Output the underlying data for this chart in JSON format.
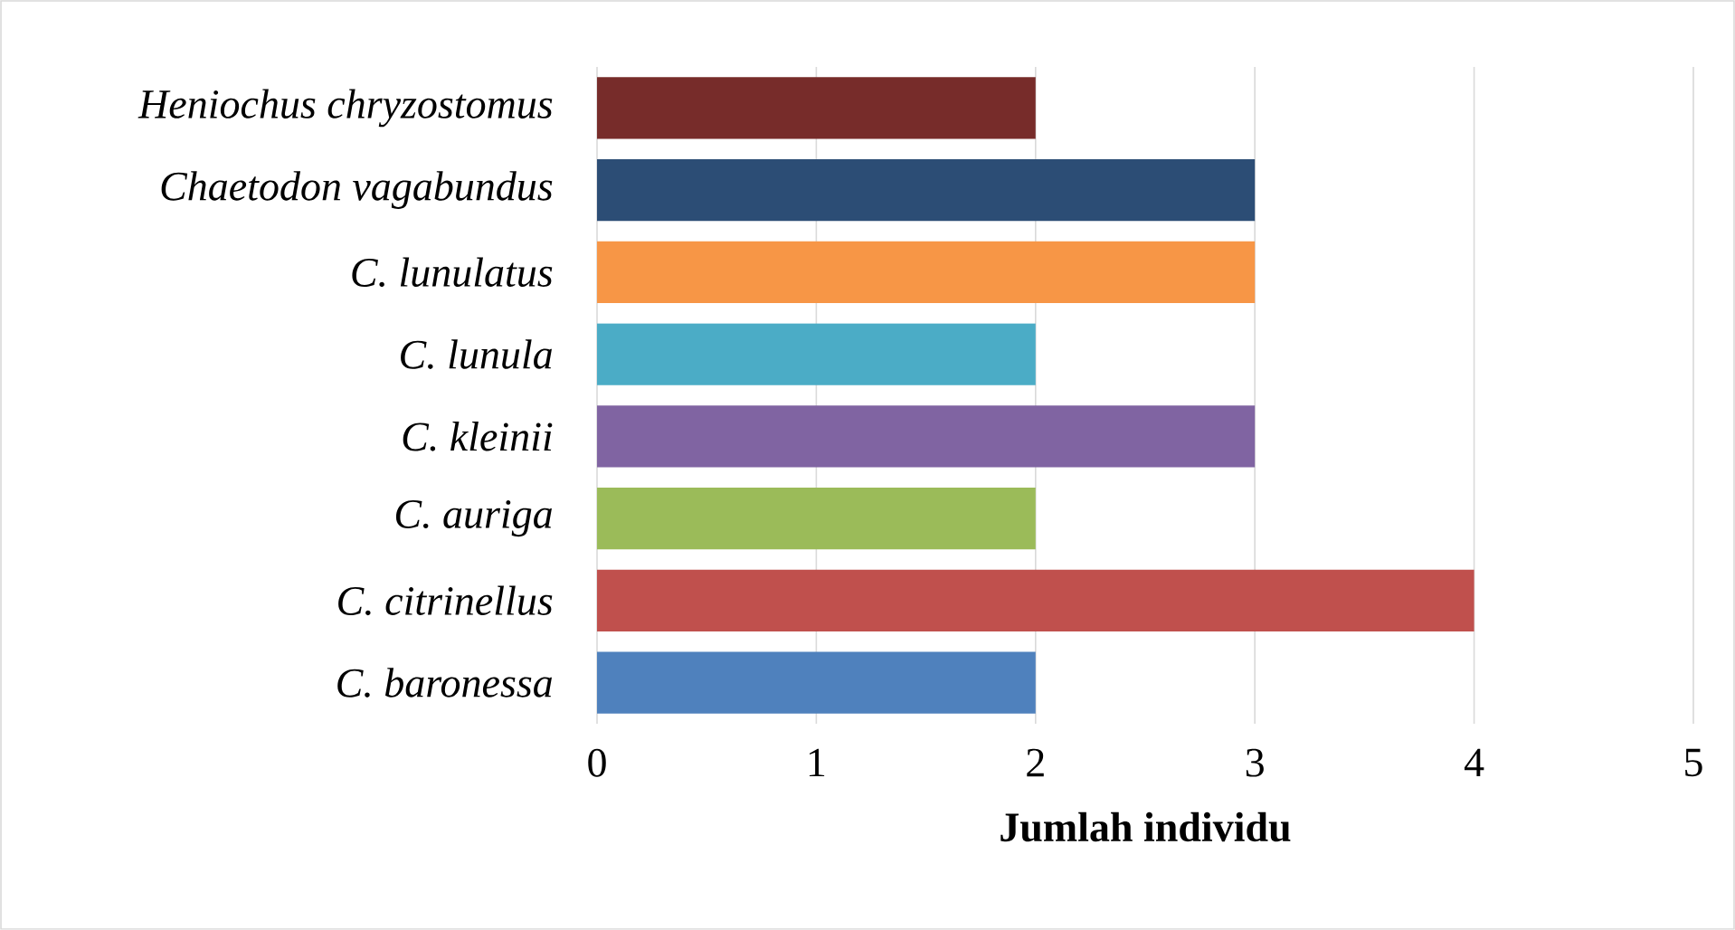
{
  "chart_data": {
    "type": "bar",
    "orientation": "horizontal",
    "xlabel": "Jumlah individu",
    "categories": [
      "Heniochus chryzostomus",
      "Chaetodon vagabundus",
      "C. lunulatus",
      "C. lunula",
      "C. kleinii",
      "C. auriga",
      "C. citrinellus",
      "C. baronessa"
    ],
    "values": [
      2,
      3,
      3,
      2,
      3,
      2,
      4,
      2
    ],
    "colors": [
      "#772c2a",
      "#2c4d75",
      "#f79646",
      "#4bacc6",
      "#8064a2",
      "#9bbb59",
      "#c0504d",
      "#4f81bd"
    ],
    "xlim": [
      0,
      5
    ],
    "xticks": [
      0,
      1,
      2,
      3,
      4,
      5
    ],
    "grid": "x"
  }
}
